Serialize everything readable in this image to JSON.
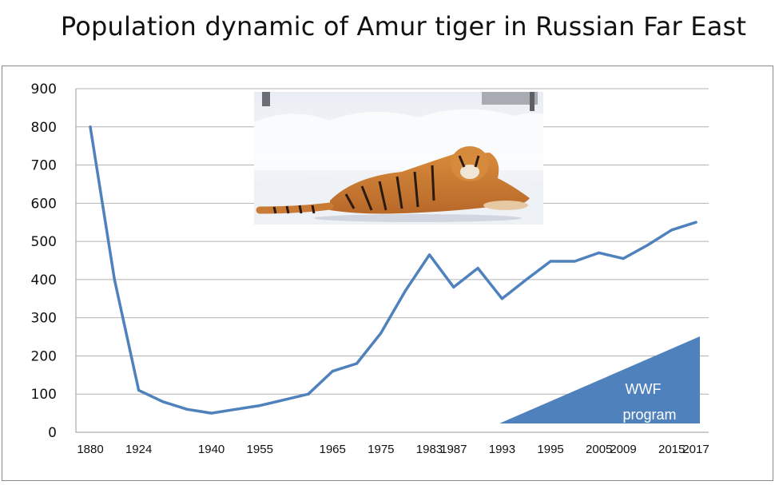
{
  "slide": {
    "title": "Population dynamic of Amur tiger in Russian Far East"
  },
  "chart_data": {
    "type": "line",
    "title": "Population dynamic of Amur tiger in Russian Far East",
    "xlabel": "",
    "ylabel": "",
    "ylim": [
      0,
      900
    ],
    "yticks": [
      0,
      100,
      200,
      300,
      400,
      500,
      600,
      700,
      800,
      900
    ],
    "grid": "horizontal",
    "line_color": "#4f81bd",
    "categories": [
      "1880",
      "",
      "1924",
      "",
      "",
      "1940",
      "",
      "1955",
      "",
      "",
      "1965",
      "",
      "1975",
      "",
      "1983",
      "1987",
      "",
      "1993",
      "",
      "1995",
      "",
      "2005",
      "2009",
      "",
      "2015",
      "2017"
    ],
    "series": [
      {
        "values": [
          800,
          400,
          110,
          80,
          60,
          50,
          60,
          70,
          85,
          100,
          160,
          180,
          260,
          370,
          465,
          380,
          430,
          350,
          400,
          448,
          448,
          470,
          455,
          490,
          530,
          550
        ]
      }
    ],
    "annotation": {
      "text_line1": "WWF",
      "text_line2": "program",
      "color": "#4f81bd"
    },
    "inset_image": "amur-tiger-lying-in-snow-photo"
  }
}
